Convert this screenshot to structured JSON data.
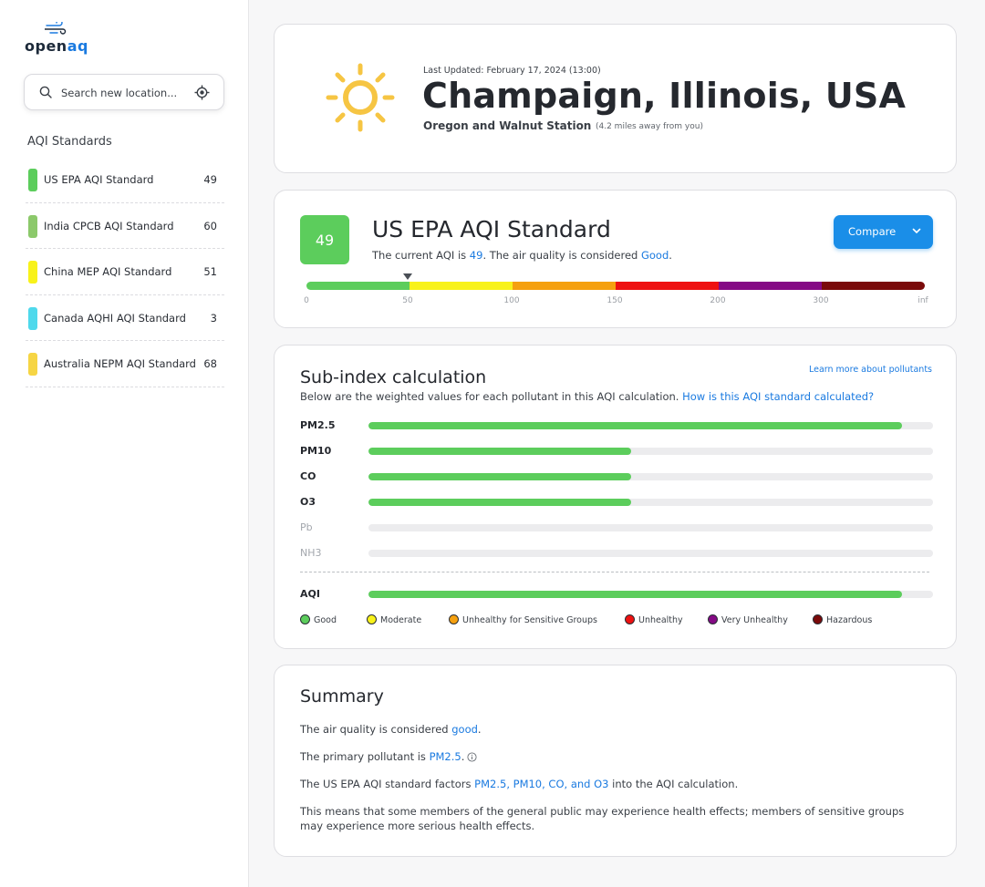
{
  "sidebar": {
    "logo": {
      "text_pre": "open",
      "text_accent": "aq"
    },
    "search": {
      "placeholder": "Search new location..."
    },
    "heading": "AQI Standards",
    "standards": [
      {
        "label": "US EPA AQI Standard",
        "value": "49",
        "color": "#5ccd5c"
      },
      {
        "label": "India CPCB AQI Standard",
        "value": "60",
        "color": "#8cc96b"
      },
      {
        "label": "China MEP AQI Standard",
        "value": "51",
        "color": "#f8f21a"
      },
      {
        "label": "Canada AQHI AQI Standard",
        "value": "3",
        "color": "#4fd9ec"
      },
      {
        "label": "Australia NEPM AQI Standard",
        "value": "68",
        "color": "#f6d544"
      }
    ]
  },
  "location": {
    "updated": "Last Updated: February 17, 2024 (13:00)",
    "city": "Champaign, Illinois, USA",
    "station": "Oregon and Walnut Station",
    "distance": "(4.2 miles away from you)",
    "weather_icon": "sun-icon"
  },
  "standard_card": {
    "aqi_value": "49",
    "title": "US EPA AQI Standard",
    "desc_pre": "The current AQI is ",
    "desc_value": "49",
    "desc_mid": ". The air quality is considered ",
    "desc_category": "Good",
    "desc_post": ".",
    "compare_label": "Compare",
    "scale_colors": [
      "#5ccd5c",
      "#f8f21a",
      "#f5a00f",
      "#ee1111",
      "#850a85",
      "#7a0a0a"
    ],
    "scale_ticks": [
      "0",
      "50",
      "100",
      "150",
      "200",
      "300",
      "inf"
    ],
    "marker_value": 49
  },
  "subindex": {
    "title": "Sub-index calculation",
    "learn_link": "Learn more about pollutants",
    "desc": "Below are the weighted values for each pollutant in this AQI calculation. ",
    "desc_link": "How is this AQI standard calculated?",
    "pollutants": [
      {
        "name": "PM2.5",
        "fraction": 0.945,
        "active": true
      },
      {
        "name": "PM10",
        "fraction": 0.465,
        "active": true
      },
      {
        "name": "CO",
        "fraction": 0.465,
        "active": true
      },
      {
        "name": "O3",
        "fraction": 0.465,
        "active": true
      },
      {
        "name": "Pb",
        "fraction": 0,
        "active": false
      },
      {
        "name": "NH3",
        "fraction": 0,
        "active": false
      }
    ],
    "aqi_row": {
      "name": "AQI",
      "fraction": 0.945
    },
    "legend": [
      {
        "label": "Good",
        "color": "#5ccd5c"
      },
      {
        "label": "Moderate",
        "color": "#f8f21a"
      },
      {
        "label": "Unhealthy for Sensitive Groups",
        "color": "#f5a00f"
      },
      {
        "label": "Unhealthy",
        "color": "#ee1111"
      },
      {
        "label": "Very Unhealthy",
        "color": "#850a85"
      },
      {
        "label": "Hazardous",
        "color": "#7a0a0a"
      }
    ]
  },
  "summary": {
    "title": "Summary",
    "p1_pre": "The air quality is considered ",
    "p1_link": "good",
    "p1_post": ".",
    "p2_pre": "The primary pollutant is ",
    "p2_link": "PM2.5",
    "p2_post": ".",
    "p3_pre": "The US EPA AQI standard factors ",
    "p3_link": "PM2.5, PM10, CO, and O3",
    "p3_post": " into the AQI calculation.",
    "p4": "This means that some members of the general public may experience health effects; members of sensitive groups may experience more serious health effects."
  }
}
